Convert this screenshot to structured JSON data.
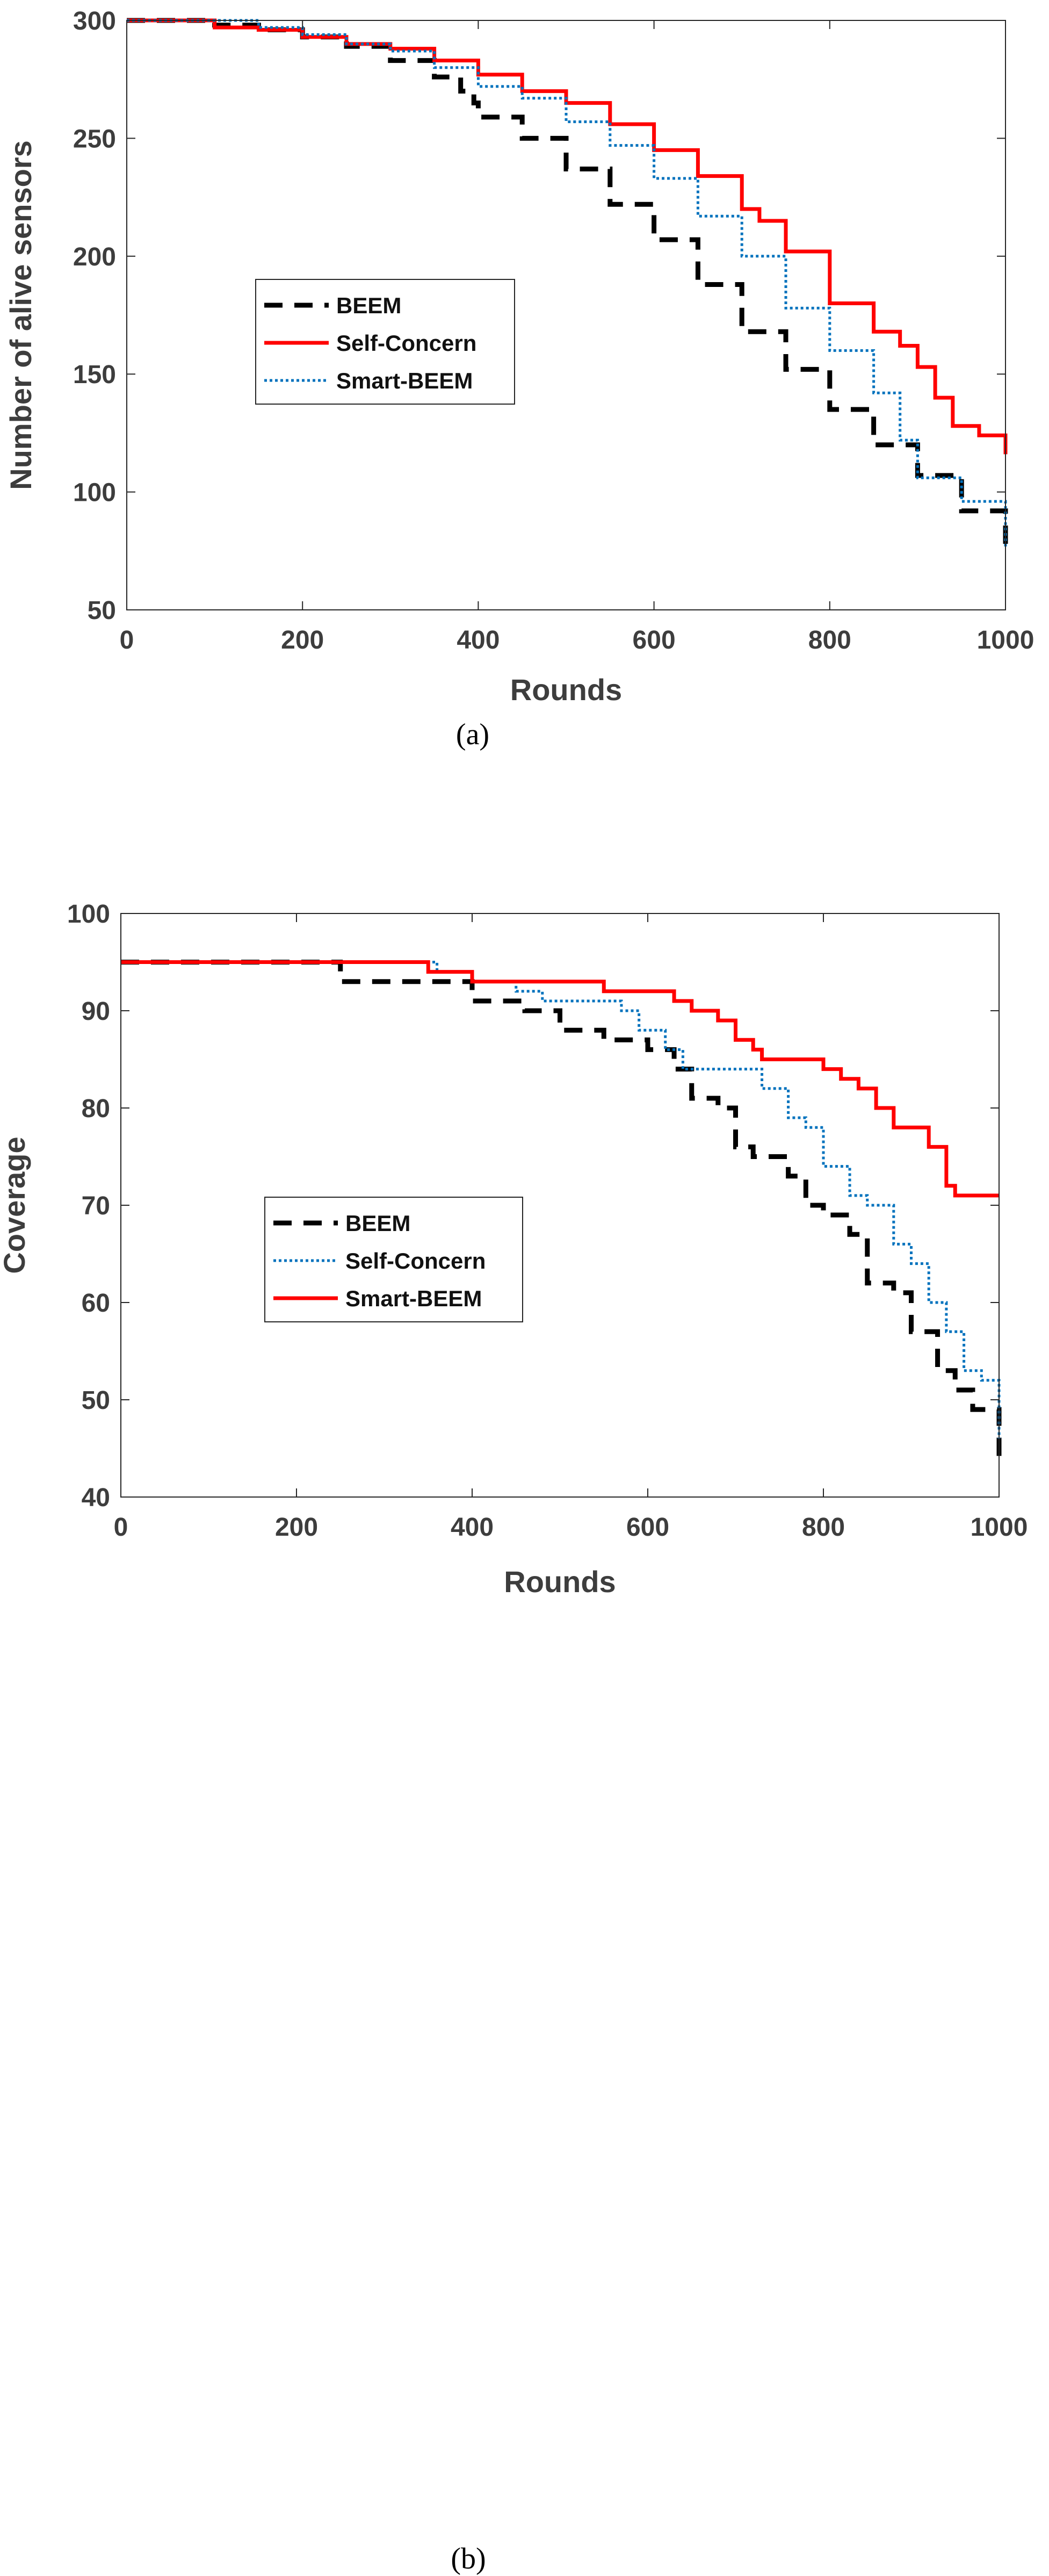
{
  "colors": {
    "beem": "#000000",
    "self_concern": "#ff0000",
    "smart_beem": "#0072bd",
    "axis_text": "#3d3d3d"
  },
  "chart_data": [
    {
      "type": "line",
      "caption": "(a)",
      "xlabel": "Rounds",
      "ylabel": "Number of alive sensors",
      "xlim": [
        0,
        1000
      ],
      "ylim": [
        50,
        300
      ],
      "xticks": [
        0,
        200,
        400,
        600,
        800,
        1000
      ],
      "yticks": [
        50,
        100,
        150,
        200,
        250,
        300
      ],
      "legend_position": "middle-left",
      "series": [
        {
          "name": "BEEM",
          "style": "dashed",
          "color": "#000000",
          "x": [
            0,
            50,
            100,
            150,
            200,
            250,
            300,
            350,
            380,
            395,
            400,
            450,
            500,
            550,
            600,
            650,
            700,
            750,
            800,
            850,
            900,
            950,
            1000
          ],
          "y": [
            300,
            300,
            298,
            296,
            293,
            289,
            283,
            276,
            270,
            265,
            259,
            250,
            237,
            222,
            207,
            188,
            168,
            152,
            135,
            120,
            107,
            92,
            75
          ]
        },
        {
          "name": "Self-Concern",
          "style": "solid",
          "color": "#ff0000",
          "x": [
            0,
            70,
            100,
            150,
            200,
            250,
            300,
            350,
            400,
            450,
            500,
            550,
            600,
            650,
            700,
            720,
            750,
            800,
            850,
            880,
            900,
            920,
            940,
            970,
            1000
          ],
          "y": [
            300,
            300,
            297,
            296,
            293,
            290,
            288,
            283,
            277,
            270,
            265,
            256,
            245,
            234,
            220,
            215,
            202,
            180,
            168,
            162,
            153,
            140,
            128,
            124,
            116
          ]
        },
        {
          "name": "Smart-BEEM",
          "style": "dotted",
          "color": "#0072bd",
          "x": [
            0,
            100,
            150,
            200,
            250,
            300,
            350,
            400,
            450,
            500,
            550,
            600,
            650,
            700,
            750,
            800,
            850,
            880,
            900,
            950,
            1000
          ],
          "y": [
            300,
            300,
            297,
            294,
            290,
            287,
            280,
            272,
            267,
            257,
            247,
            233,
            217,
            200,
            178,
            160,
            142,
            122,
            106,
            96,
            76
          ]
        }
      ]
    },
    {
      "type": "line",
      "caption": "(b)",
      "xlabel": "Rounds",
      "ylabel": "Coverage",
      "xlim": [
        0,
        1000
      ],
      "ylim": [
        40,
        100
      ],
      "xticks": [
        0,
        200,
        400,
        600,
        800,
        1000
      ],
      "yticks": [
        40,
        50,
        60,
        70,
        80,
        90,
        100
      ],
      "legend_position": "lower-left",
      "series": [
        {
          "name": "BEEM",
          "style": "dashed",
          "color": "#000000",
          "x": [
            0,
            200,
            250,
            300,
            380,
            400,
            420,
            460,
            500,
            520,
            550,
            600,
            630,
            650,
            680,
            700,
            720,
            760,
            780,
            800,
            830,
            850,
            880,
            900,
            930,
            950,
            970,
            1000
          ],
          "y": [
            95,
            95,
            93,
            93,
            93,
            91,
            91,
            90,
            88,
            88,
            87,
            86,
            84,
            81,
            80,
            76,
            75,
            73,
            70,
            69,
            67,
            62,
            61,
            57,
            53,
            51,
            49,
            44
          ]
        },
        {
          "name": "Self-Concern",
          "style": "dotted",
          "color": "#0072bd",
          "x": [
            0,
            330,
            360,
            400,
            450,
            480,
            540,
            570,
            590,
            620,
            640,
            700,
            730,
            760,
            780,
            800,
            830,
            850,
            880,
            900,
            920,
            940,
            960,
            980,
            1000
          ],
          "y": [
            95,
            95,
            94,
            93,
            92,
            91,
            91,
            90,
            88,
            86,
            84,
            84,
            82,
            79,
            78,
            74,
            71,
            70,
            66,
            64,
            60,
            57,
            53,
            52,
            46
          ]
        },
        {
          "name": "Smart-BEEM",
          "style": "solid",
          "color": "#ff0000",
          "x": [
            0,
            340,
            350,
            400,
            450,
            500,
            550,
            600,
            630,
            650,
            680,
            700,
            720,
            730,
            750,
            800,
            820,
            840,
            860,
            880,
            900,
            920,
            940,
            950,
            1000
          ],
          "y": [
            95,
            95,
            94,
            93,
            93,
            93,
            92,
            92,
            91,
            90,
            89,
            87,
            86,
            85,
            85,
            84,
            83,
            82,
            80,
            78,
            78,
            76,
            72,
            71,
            71
          ]
        }
      ]
    }
  ]
}
